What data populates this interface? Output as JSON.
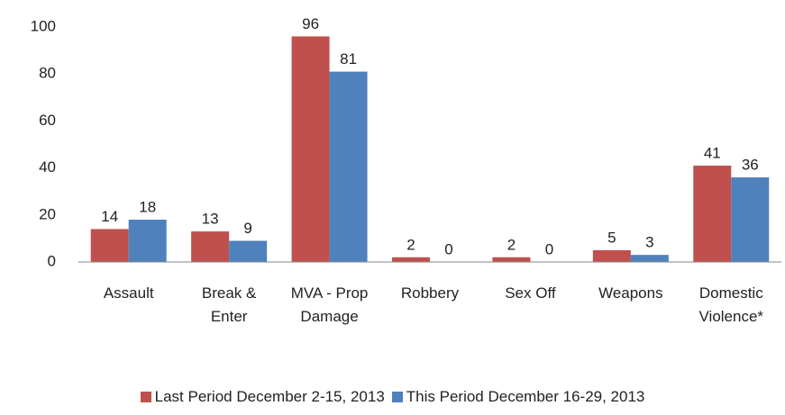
{
  "chart_data": {
    "type": "bar",
    "categories": [
      "Assault",
      "Break & Enter",
      "MVA - Prop Damage",
      "Robbery",
      "Sex Off",
      "Weapons",
      "Domestic Violence*"
    ],
    "series": [
      {
        "name": "Last Period December 2-15, 2013",
        "color": "#c0504d",
        "values": [
          14,
          13,
          96,
          2,
          2,
          5,
          41
        ]
      },
      {
        "name": "This Period December 16-29, 2013",
        "color": "#4f81bd",
        "values": [
          18,
          9,
          81,
          0,
          0,
          3,
          36
        ]
      }
    ],
    "ylim": [
      0,
      100
    ],
    "yticks": [
      0,
      20,
      40,
      60,
      80,
      100
    ],
    "grid": false,
    "legend": "bottom"
  }
}
